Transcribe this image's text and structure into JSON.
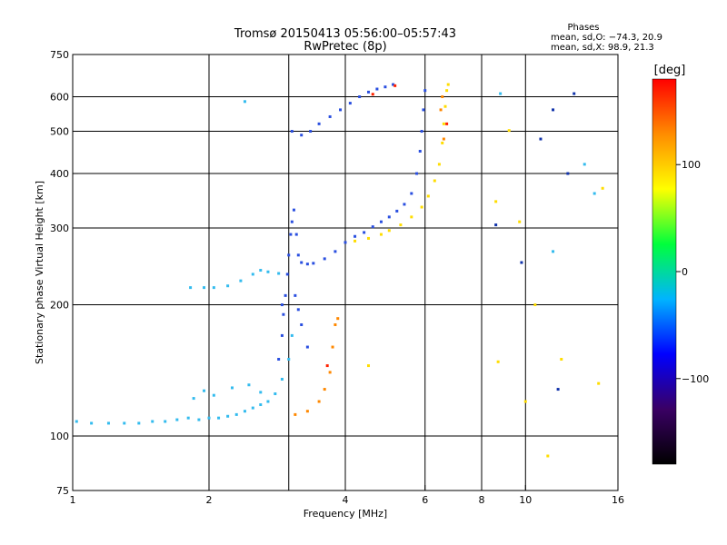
{
  "title": {
    "line1": "Tromsø 20150413 05:56:00–05:57:43",
    "line2": "RwPretec (8p)"
  },
  "phases": {
    "heading": "Phases",
    "line_o": "mean, sd,O: −74.3, 20.9",
    "line_x": "mean, sd,X:  98.9, 21.3"
  },
  "colorbar": {
    "unit": "[deg]",
    "range": [
      -180,
      180
    ],
    "ticks": [
      {
        "value": 100,
        "label": "100"
      },
      {
        "value": 0,
        "label": "0"
      },
      {
        "value": -100,
        "label": "−100"
      }
    ],
    "stops": [
      "#000000",
      "#3a0064",
      "#0000ff",
      "#00b4ff",
      "#00ff3c",
      "#ffff00",
      "#ff8c00",
      "#ff0000"
    ]
  },
  "chart_data": {
    "type": "scatter",
    "xlabel": "Frequency [MHz]",
    "ylabel": "Stationary phase Virtual Height [km]",
    "xscale": "log",
    "yscale": "log",
    "xlim": [
      1,
      16
    ],
    "ylim": [
      75,
      750
    ],
    "xticks": [
      1,
      2,
      4,
      6,
      8,
      10,
      16
    ],
    "xtick_labels": [
      "1",
      "2",
      "4",
      "6",
      "8",
      "10",
      "16"
    ],
    "yticks": [
      75,
      100,
      200,
      300,
      400,
      500,
      600,
      750
    ],
    "ytick_labels": [
      "75",
      "100",
      "200",
      "300",
      "400",
      "500",
      "600",
      "750"
    ],
    "xgrid": [
      1,
      2,
      3,
      4,
      6,
      8,
      10
    ],
    "ygrid": [
      75,
      100,
      200,
      300,
      400,
      500,
      600,
      750
    ],
    "series": [
      {
        "color": "#33bbee",
        "points": [
          [
            1.02,
            108
          ],
          [
            1.1,
            107
          ],
          [
            1.2,
            107
          ],
          [
            1.3,
            107
          ],
          [
            1.4,
            107
          ],
          [
            1.5,
            108
          ],
          [
            1.6,
            108
          ],
          [
            1.7,
            109
          ],
          [
            1.8,
            110
          ],
          [
            1.9,
            109
          ],
          [
            2.0,
            110
          ],
          [
            2.1,
            110
          ],
          [
            2.2,
            111
          ],
          [
            2.3,
            112
          ],
          [
            2.4,
            114
          ],
          [
            2.5,
            116
          ],
          [
            2.6,
            118
          ],
          [
            2.7,
            120
          ],
          [
            2.8,
            125
          ],
          [
            2.9,
            135
          ],
          [
            3.0,
            150
          ],
          [
            3.05,
            170
          ],
          [
            1.85,
            122
          ],
          [
            1.95,
            127
          ],
          [
            2.05,
            124
          ],
          [
            2.25,
            129
          ],
          [
            2.45,
            131
          ],
          [
            2.6,
            126
          ]
        ]
      },
      {
        "color": "#33bbee",
        "points": [
          [
            1.82,
            219
          ],
          [
            1.95,
            219
          ],
          [
            2.05,
            219
          ],
          [
            2.2,
            221
          ],
          [
            2.35,
            227
          ],
          [
            2.5,
            235
          ],
          [
            2.6,
            240
          ],
          [
            2.7,
            238
          ],
          [
            2.85,
            236
          ]
        ]
      },
      {
        "color": "#2a4fe0",
        "points": [
          [
            2.85,
            150
          ],
          [
            2.9,
            170
          ],
          [
            2.92,
            190
          ],
          [
            2.95,
            210
          ],
          [
            2.98,
            235
          ],
          [
            3.0,
            260
          ],
          [
            3.03,
            290
          ],
          [
            3.05,
            310
          ],
          [
            3.08,
            330
          ],
          [
            3.12,
            290
          ],
          [
            3.15,
            260
          ],
          [
            3.2,
            250
          ],
          [
            3.3,
            248
          ],
          [
            3.4,
            249
          ],
          [
            3.6,
            255
          ],
          [
            3.8,
            265
          ],
          [
            4.0,
            278
          ],
          [
            4.2,
            287
          ],
          [
            4.4,
            293
          ],
          [
            4.6,
            302
          ],
          [
            4.8,
            310
          ],
          [
            5.0,
            318
          ],
          [
            5.2,
            328
          ],
          [
            5.4,
            340
          ],
          [
            5.6,
            360
          ],
          [
            5.75,
            400
          ],
          [
            5.85,
            450
          ],
          [
            5.9,
            500
          ],
          [
            5.95,
            560
          ],
          [
            6.0,
            620
          ],
          [
            2.9,
            200
          ],
          [
            3.1,
            210
          ],
          [
            3.2,
            180
          ],
          [
            3.3,
            160
          ],
          [
            3.15,
            195
          ]
        ]
      },
      {
        "color": "#2a4fe0",
        "points": [
          [
            3.05,
            500
          ],
          [
            3.2,
            490
          ],
          [
            3.35,
            500
          ],
          [
            3.5,
            520
          ],
          [
            3.7,
            540
          ],
          [
            3.9,
            560
          ],
          [
            4.1,
            580
          ],
          [
            4.3,
            600
          ],
          [
            4.5,
            615
          ],
          [
            4.7,
            625
          ],
          [
            4.9,
            632
          ],
          [
            5.1,
            640
          ]
        ]
      },
      {
        "color": "#ffdd00",
        "points": [
          [
            4.2,
            280
          ],
          [
            4.5,
            284
          ],
          [
            4.8,
            290
          ],
          [
            5.0,
            296
          ],
          [
            5.3,
            305
          ],
          [
            5.6,
            318
          ],
          [
            5.9,
            335
          ],
          [
            6.1,
            355
          ],
          [
            6.3,
            385
          ],
          [
            6.45,
            420
          ],
          [
            6.55,
            470
          ],
          [
            6.6,
            520
          ],
          [
            6.65,
            570
          ],
          [
            6.7,
            620
          ],
          [
            6.75,
            640
          ]
        ]
      },
      {
        "color": "#ff8800",
        "points": [
          [
            3.1,
            112
          ],
          [
            3.3,
            114
          ],
          [
            3.5,
            120
          ],
          [
            3.6,
            128
          ],
          [
            3.7,
            140
          ],
          [
            3.75,
            160
          ],
          [
            3.8,
            180
          ],
          [
            3.85,
            186
          ],
          [
            6.5,
            560
          ],
          [
            6.55,
            600
          ],
          [
            6.6,
            480
          ]
        ]
      },
      {
        "color": "#ff2200",
        "points": [
          [
            5.15,
            636
          ],
          [
            4.6,
            608
          ],
          [
            6.7,
            520
          ],
          [
            3.65,
            145
          ]
        ]
      },
      {
        "color": "#1133aa",
        "points": [
          [
            8.6,
            305
          ],
          [
            10.8,
            480
          ],
          [
            11.5,
            560
          ],
          [
            12.8,
            610
          ],
          [
            12.4,
            400
          ],
          [
            11.8,
            128
          ],
          [
            9.8,
            250
          ]
        ]
      },
      {
        "color": "#ffdd00",
        "points": [
          [
            8.6,
            345
          ],
          [
            9.2,
            502
          ],
          [
            9.7,
            310
          ],
          [
            10.5,
            200
          ],
          [
            11.2,
            90
          ],
          [
            8.7,
            148
          ],
          [
            10.0,
            120
          ],
          [
            4.5,
            145
          ],
          [
            12.0,
            150
          ],
          [
            14.5,
            132
          ],
          [
            14.8,
            370
          ]
        ]
      },
      {
        "color": "#33bbee",
        "points": [
          [
            13.5,
            420
          ],
          [
            14.2,
            360
          ],
          [
            2.4,
            585
          ],
          [
            8.8,
            610
          ],
          [
            11.5,
            265
          ]
        ]
      }
    ]
  }
}
